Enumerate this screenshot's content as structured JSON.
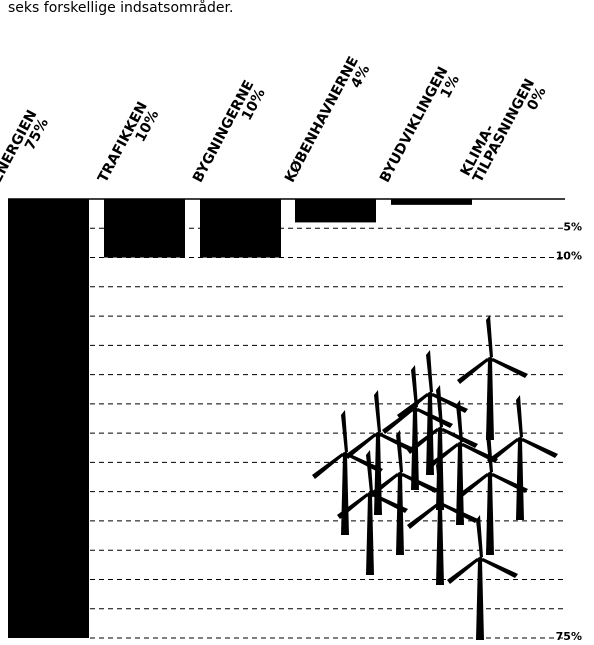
{
  "intro_text": "seks forskellige indsatsområder.",
  "chart_data": {
    "type": "bar",
    "categories": [
      [
        "ENERGIEN"
      ],
      [
        "TRAFIKKEN"
      ],
      [
        "BYGNINGERNE"
      ],
      [
        "KØBENHAVNERNE"
      ],
      [
        "BYUDVIKLINGEN"
      ],
      [
        "KLIMA-",
        "TILPASNINGEN"
      ]
    ],
    "values": [
      75,
      10,
      10,
      4,
      1,
      0
    ],
    "value_labels": [
      "75%",
      "10%",
      "10%",
      "4%",
      "1%",
      "0%"
    ],
    "color": "#000000",
    "ylim": [
      0,
      75
    ],
    "yticks": [
      {
        "value": 5,
        "label": "5%"
      },
      {
        "value": 10,
        "label": "10%"
      },
      {
        "value": 75,
        "label": "75%"
      }
    ],
    "minor_yticks": [
      15,
      20,
      25,
      30,
      35,
      40,
      45,
      50,
      55,
      60,
      65,
      70
    ],
    "grid": true
  }
}
